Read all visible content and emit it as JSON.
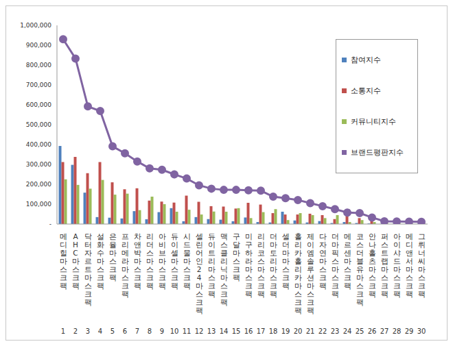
{
  "chart_data": {
    "type": "bar",
    "categories": [
      "메디힐마스크팩",
      "AHC마스크팩",
      "닥터자르트마스크팩",
      "설화수마스크팩",
      "은율마스크팩",
      "프리메라마스크팩",
      "차앤박마스크팩",
      "리더스마스크팩",
      "아비브마스크팩",
      "듀이셀마스크팩",
      "시드물마스크팩",
      "셀린어인24마스크팩",
      "듀이트리마스크팩",
      "맥스클리닉마스크팩",
      "구달마스크팩",
      "미구하라마스크팩",
      "리리코스마스크팩",
      "더마토리마스크팩",
      "셀더마마스크팩",
      "홀리카홀리카마스크팩",
      "제이엠솔루션마스크팩",
      "다자연마스크팩",
      "더마픽스마스크팩",
      "메르센마스크팩",
      "코스더블유마스크팩",
      "안나홀츠마스크팩",
      "퍼스트랩마스크팩",
      "아이샤드마스크팩",
      "메디앤서마스크팩",
      "그뤼너씨마스크팩"
    ],
    "ranks": [
      1,
      2,
      3,
      4,
      5,
      6,
      7,
      8,
      9,
      10,
      11,
      12,
      13,
      14,
      15,
      16,
      17,
      18,
      19,
      20,
      21,
      22,
      23,
      24,
      25,
      26,
      27,
      28,
      29,
      30
    ],
    "series": [
      {
        "name": "참여지수",
        "type": "bar",
        "color": "#4f81bd",
        "values": [
          393000,
          298000,
          158000,
          35000,
          32000,
          28000,
          65000,
          24000,
          60000,
          80000,
          14000,
          35000,
          25000,
          22000,
          14000,
          33000,
          10000,
          8000,
          62000,
          18000,
          8000,
          15000,
          5000,
          10000,
          5000,
          3000,
          1000,
          1000,
          1000,
          1000
        ]
      },
      {
        "name": "소통지수",
        "type": "bar",
        "color": "#c0504d",
        "values": [
          312000,
          338000,
          256000,
          312000,
          210000,
          175000,
          180000,
          118000,
          113000,
          108000,
          143000,
          112000,
          90000,
          88000,
          78000,
          107000,
          98000,
          55000,
          48000,
          48000,
          52000,
          45000,
          25000,
          45000,
          30000,
          20000,
          8000,
          8000,
          6000,
          6000
        ]
      },
      {
        "name": "커뮤니티지수",
        "type": "bar",
        "color": "#9bbb59",
        "values": [
          225000,
          197000,
          178000,
          222000,
          148000,
          153000,
          70000,
          138000,
          100000,
          62000,
          72000,
          48000,
          63000,
          62000,
          80000,
          30000,
          60000,
          75000,
          20000,
          55000,
          45000,
          30000,
          45000,
          10000,
          20000,
          10000,
          5000,
          5000,
          5000,
          4000
        ]
      },
      {
        "name": "브랜드평판지수",
        "type": "line",
        "color": "#8064a2",
        "marker": "circle",
        "values": [
          930000,
          833000,
          592000,
          569000,
          391000,
          356000,
          315000,
          280000,
          273000,
          250000,
          229000,
          195000,
          178000,
          172000,
          172000,
          170000,
          168000,
          138000,
          130000,
          121000,
          105000,
          90000,
          75000,
          58000,
          55000,
          33000,
          14000,
          13000,
          12000,
          11000
        ]
      }
    ],
    "ylim": [
      0,
      1000000
    ],
    "yticks": [
      {
        "value": 0,
        "label": "-"
      },
      {
        "value": 100000,
        "label": "100,000"
      },
      {
        "value": 200000,
        "label": "200,000"
      },
      {
        "value": 300000,
        "label": "300,000"
      },
      {
        "value": 400000,
        "label": "400,000"
      },
      {
        "value": 500000,
        "label": "500,000"
      },
      {
        "value": 600000,
        "label": "600,000"
      },
      {
        "value": 700000,
        "label": "700,000"
      },
      {
        "value": 800000,
        "label": "800,000"
      },
      {
        "value": 900000,
        "label": "900,000"
      },
      {
        "value": 1000000,
        "label": "1,000,000"
      }
    ],
    "legend": "upper right",
    "grid": false
  }
}
